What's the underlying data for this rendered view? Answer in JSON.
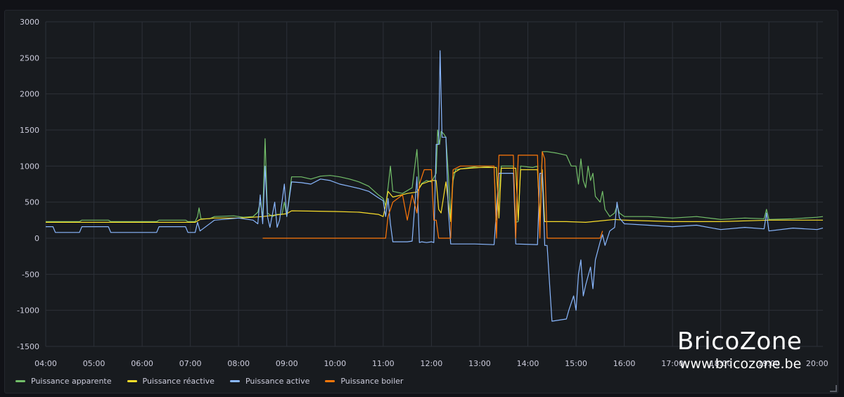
{
  "chart_data": {
    "type": "line",
    "title": "",
    "xlabel": "",
    "ylabel": "",
    "xlim": [
      4.0,
      20.12
    ],
    "ylim": [
      -1500,
      3000
    ],
    "y_ticks": [
      3000,
      2500,
      2000,
      1500,
      1000,
      500,
      0,
      -500,
      -1000,
      -1500
    ],
    "x_ticks": [
      {
        "v": 4,
        "label": "04:00"
      },
      {
        "v": 5,
        "label": "05:00"
      },
      {
        "v": 6,
        "label": "06:00"
      },
      {
        "v": 7,
        "label": "07:00"
      },
      {
        "v": 8,
        "label": "08:00"
      },
      {
        "v": 9,
        "label": "09:00"
      },
      {
        "v": 10,
        "label": "10:00"
      },
      {
        "v": 11,
        "label": "11:00"
      },
      {
        "v": 12,
        "label": "12:00"
      },
      {
        "v": 13,
        "label": "13:00"
      },
      {
        "v": 14,
        "label": "14:00"
      },
      {
        "v": 15,
        "label": "15:00"
      },
      {
        "v": 16,
        "label": "16:00"
      },
      {
        "v": 17,
        "label": "17:00"
      },
      {
        "v": 18,
        "label": "18:00"
      },
      {
        "v": 19,
        "label": "19:00"
      },
      {
        "v": 20,
        "label": "20:00"
      }
    ],
    "grid": true,
    "legend_position": "bottom-left",
    "series": [
      {
        "name": "Puissance apparente",
        "color": "#73bf69",
        "points": [
          [
            4.0,
            230
          ],
          [
            4.7,
            230
          ],
          [
            4.75,
            250
          ],
          [
            5.3,
            250
          ],
          [
            5.35,
            230
          ],
          [
            6.3,
            230
          ],
          [
            6.35,
            250
          ],
          [
            6.9,
            250
          ],
          [
            6.95,
            230
          ],
          [
            7.1,
            230
          ],
          [
            7.15,
            300
          ],
          [
            7.18,
            420
          ],
          [
            7.22,
            270
          ],
          [
            7.4,
            270
          ],
          [
            7.5,
            300
          ],
          [
            7.9,
            310
          ],
          [
            8.1,
            290
          ],
          [
            8.3,
            300
          ],
          [
            8.4,
            360
          ],
          [
            8.45,
            500
          ],
          [
            8.5,
            300
          ],
          [
            8.55,
            1380
          ],
          [
            8.6,
            350
          ],
          [
            8.7,
            300
          ],
          [
            8.8,
            330
          ],
          [
            8.9,
            330
          ],
          [
            8.95,
            500
          ],
          [
            9.0,
            300
          ],
          [
            9.1,
            850
          ],
          [
            9.3,
            850
          ],
          [
            9.5,
            820
          ],
          [
            9.7,
            860
          ],
          [
            9.9,
            870
          ],
          [
            10.1,
            850
          ],
          [
            10.3,
            820
          ],
          [
            10.5,
            780
          ],
          [
            10.7,
            720
          ],
          [
            10.9,
            600
          ],
          [
            11.0,
            550
          ],
          [
            11.05,
            450
          ],
          [
            11.1,
            700
          ],
          [
            11.15,
            1000
          ],
          [
            11.2,
            650
          ],
          [
            11.4,
            620
          ],
          [
            11.6,
            700
          ],
          [
            11.7,
            1230
          ],
          [
            11.75,
            700
          ],
          [
            11.8,
            760
          ],
          [
            11.9,
            800
          ],
          [
            12.0,
            780
          ],
          [
            12.1,
            900
          ],
          [
            12.13,
            1500
          ],
          [
            12.17,
            1300
          ],
          [
            12.2,
            1480
          ],
          [
            12.25,
            1450
          ],
          [
            12.3,
            1400
          ],
          [
            12.35,
            900
          ],
          [
            12.4,
            300
          ],
          [
            12.45,
            800
          ],
          [
            12.5,
            950
          ],
          [
            12.8,
            980
          ],
          [
            13.0,
            1000
          ],
          [
            13.3,
            980
          ],
          [
            13.35,
            250
          ],
          [
            13.45,
            1000
          ],
          [
            13.7,
            1000
          ],
          [
            13.75,
            220
          ],
          [
            13.8,
            230
          ],
          [
            13.85,
            1000
          ],
          [
            14.1,
            980
          ],
          [
            14.2,
            1000
          ],
          [
            14.25,
            230
          ],
          [
            14.3,
            1200
          ],
          [
            14.4,
            1200
          ],
          [
            14.6,
            1180
          ],
          [
            14.8,
            1150
          ],
          [
            14.9,
            1000
          ],
          [
            15.0,
            1000
          ],
          [
            15.05,
            750
          ],
          [
            15.1,
            1100
          ],
          [
            15.15,
            800
          ],
          [
            15.2,
            700
          ],
          [
            15.25,
            1000
          ],
          [
            15.3,
            800
          ],
          [
            15.35,
            900
          ],
          [
            15.4,
            580
          ],
          [
            15.5,
            500
          ],
          [
            15.55,
            650
          ],
          [
            15.6,
            400
          ],
          [
            15.7,
            300
          ],
          [
            15.8,
            350
          ],
          [
            15.85,
            450
          ],
          [
            15.9,
            350
          ],
          [
            16.0,
            300
          ],
          [
            16.5,
            300
          ],
          [
            17.0,
            280
          ],
          [
            17.5,
            300
          ],
          [
            18.0,
            260
          ],
          [
            18.5,
            280
          ],
          [
            18.9,
            270
          ],
          [
            18.95,
            400
          ],
          [
            19.0,
            260
          ],
          [
            19.5,
            270
          ],
          [
            20.0,
            290
          ],
          [
            20.12,
            300
          ]
        ]
      },
      {
        "name": "Puissance réactive",
        "color": "#fade2a",
        "points": [
          [
            4.0,
            220
          ],
          [
            7.1,
            220
          ],
          [
            7.2,
            260
          ],
          [
            7.5,
            280
          ],
          [
            8.0,
            280
          ],
          [
            8.3,
            290
          ],
          [
            8.5,
            300
          ],
          [
            9.0,
            340
          ],
          [
            9.1,
            380
          ],
          [
            10.0,
            370
          ],
          [
            10.5,
            360
          ],
          [
            10.9,
            330
          ],
          [
            11.0,
            300
          ],
          [
            11.05,
            450
          ],
          [
            11.1,
            650
          ],
          [
            11.2,
            570
          ],
          [
            11.5,
            620
          ],
          [
            11.7,
            640
          ],
          [
            11.8,
            750
          ],
          [
            12.0,
            800
          ],
          [
            12.1,
            800
          ],
          [
            12.15,
            400
          ],
          [
            12.2,
            350
          ],
          [
            12.3,
            780
          ],
          [
            12.35,
            500
          ],
          [
            12.4,
            230
          ],
          [
            12.45,
            900
          ],
          [
            12.6,
            960
          ],
          [
            13.0,
            980
          ],
          [
            13.35,
            980
          ],
          [
            13.4,
            280
          ],
          [
            13.45,
            970
          ],
          [
            13.75,
            970
          ],
          [
            13.8,
            250
          ],
          [
            13.85,
            950
          ],
          [
            14.2,
            950
          ],
          [
            14.25,
            250
          ],
          [
            14.3,
            950
          ],
          [
            14.35,
            230
          ],
          [
            14.8,
            230
          ],
          [
            15.2,
            220
          ],
          [
            15.5,
            240
          ],
          [
            15.8,
            260
          ],
          [
            16.0,
            250
          ],
          [
            17.0,
            230
          ],
          [
            18.0,
            230
          ],
          [
            19.0,
            250
          ],
          [
            20.12,
            250
          ]
        ]
      },
      {
        "name": "Puissance active",
        "color": "#8ab8ff",
        "points": [
          [
            4.0,
            160
          ],
          [
            4.15,
            160
          ],
          [
            4.2,
            80
          ],
          [
            4.7,
            80
          ],
          [
            4.75,
            160
          ],
          [
            5.3,
            160
          ],
          [
            5.35,
            80
          ],
          [
            6.3,
            80
          ],
          [
            6.35,
            160
          ],
          [
            6.9,
            160
          ],
          [
            6.95,
            80
          ],
          [
            7.1,
            80
          ],
          [
            7.15,
            220
          ],
          [
            7.2,
            100
          ],
          [
            7.5,
            250
          ],
          [
            8.0,
            280
          ],
          [
            8.3,
            250
          ],
          [
            8.4,
            200
          ],
          [
            8.45,
            600
          ],
          [
            8.5,
            200
          ],
          [
            8.55,
            1000
          ],
          [
            8.6,
            300
          ],
          [
            8.65,
            150
          ],
          [
            8.75,
            500
          ],
          [
            8.8,
            150
          ],
          [
            8.85,
            250
          ],
          [
            8.95,
            750
          ],
          [
            9.0,
            300
          ],
          [
            9.1,
            780
          ],
          [
            9.3,
            770
          ],
          [
            9.5,
            750
          ],
          [
            9.7,
            820
          ],
          [
            9.9,
            800
          ],
          [
            10.1,
            750
          ],
          [
            10.3,
            720
          ],
          [
            10.5,
            690
          ],
          [
            10.7,
            650
          ],
          [
            10.9,
            560
          ],
          [
            11.0,
            520
          ],
          [
            11.05,
            300
          ],
          [
            11.1,
            550
          ],
          [
            11.15,
            200
          ],
          [
            11.2,
            -50
          ],
          [
            11.5,
            -50
          ],
          [
            11.6,
            -40
          ],
          [
            11.7,
            850
          ],
          [
            11.75,
            -60
          ],
          [
            11.8,
            -50
          ],
          [
            11.9,
            -60
          ],
          [
            12.0,
            -50
          ],
          [
            12.05,
            -60
          ],
          [
            12.1,
            1300
          ],
          [
            12.15,
            1300
          ],
          [
            12.18,
            2600
          ],
          [
            12.22,
            1400
          ],
          [
            12.3,
            1400
          ],
          [
            12.35,
            400
          ],
          [
            12.4,
            -80
          ],
          [
            12.9,
            -80
          ],
          [
            13.3,
            -90
          ],
          [
            13.4,
            900
          ],
          [
            13.7,
            900
          ],
          [
            13.75,
            -80
          ],
          [
            14.2,
            -90
          ],
          [
            14.25,
            900
          ],
          [
            14.3,
            900
          ],
          [
            14.35,
            -100
          ],
          [
            14.4,
            -100
          ],
          [
            14.5,
            -1150
          ],
          [
            14.7,
            -1130
          ],
          [
            14.8,
            -1120
          ],
          [
            14.85,
            -1000
          ],
          [
            14.95,
            -800
          ],
          [
            15.0,
            -1000
          ],
          [
            15.05,
            -500
          ],
          [
            15.1,
            -300
          ],
          [
            15.15,
            -800
          ],
          [
            15.2,
            -650
          ],
          [
            15.3,
            -400
          ],
          [
            15.35,
            -700
          ],
          [
            15.4,
            -300
          ],
          [
            15.5,
            -50
          ],
          [
            15.55,
            50
          ],
          [
            15.6,
            -100
          ],
          [
            15.7,
            100
          ],
          [
            15.8,
            150
          ],
          [
            15.85,
            500
          ],
          [
            15.9,
            280
          ],
          [
            16.0,
            200
          ],
          [
            16.5,
            180
          ],
          [
            17.0,
            160
          ],
          [
            17.5,
            180
          ],
          [
            18.0,
            120
          ],
          [
            18.5,
            150
          ],
          [
            18.9,
            130
          ],
          [
            18.95,
            350
          ],
          [
            19.0,
            100
          ],
          [
            19.5,
            140
          ],
          [
            20.0,
            120
          ],
          [
            20.12,
            140
          ]
        ]
      },
      {
        "name": "Puissance boiler",
        "color": "#ff780a",
        "points": [
          [
            8.5,
            0
          ],
          [
            11.05,
            0
          ],
          [
            11.1,
            300
          ],
          [
            11.2,
            500
          ],
          [
            11.4,
            600
          ],
          [
            11.5,
            250
          ],
          [
            11.6,
            600
          ],
          [
            11.7,
            350
          ],
          [
            11.75,
            750
          ],
          [
            11.85,
            950
          ],
          [
            12.0,
            950
          ],
          [
            12.05,
            250
          ],
          [
            12.1,
            250
          ],
          [
            12.15,
            0
          ],
          [
            12.4,
            0
          ],
          [
            12.45,
            950
          ],
          [
            12.6,
            1000
          ],
          [
            13.3,
            1000
          ],
          [
            13.35,
            0
          ],
          [
            13.4,
            1150
          ],
          [
            13.7,
            1150
          ],
          [
            13.75,
            0
          ],
          [
            13.8,
            1150
          ],
          [
            14.2,
            1150
          ],
          [
            14.25,
            0
          ],
          [
            14.3,
            1200
          ],
          [
            14.35,
            1100
          ],
          [
            14.4,
            0
          ],
          [
            15.5,
            0
          ],
          [
            15.55,
            100
          ]
        ]
      }
    ]
  },
  "watermark": {
    "title": "BricoZone",
    "url": "www.bricozone.be"
  }
}
